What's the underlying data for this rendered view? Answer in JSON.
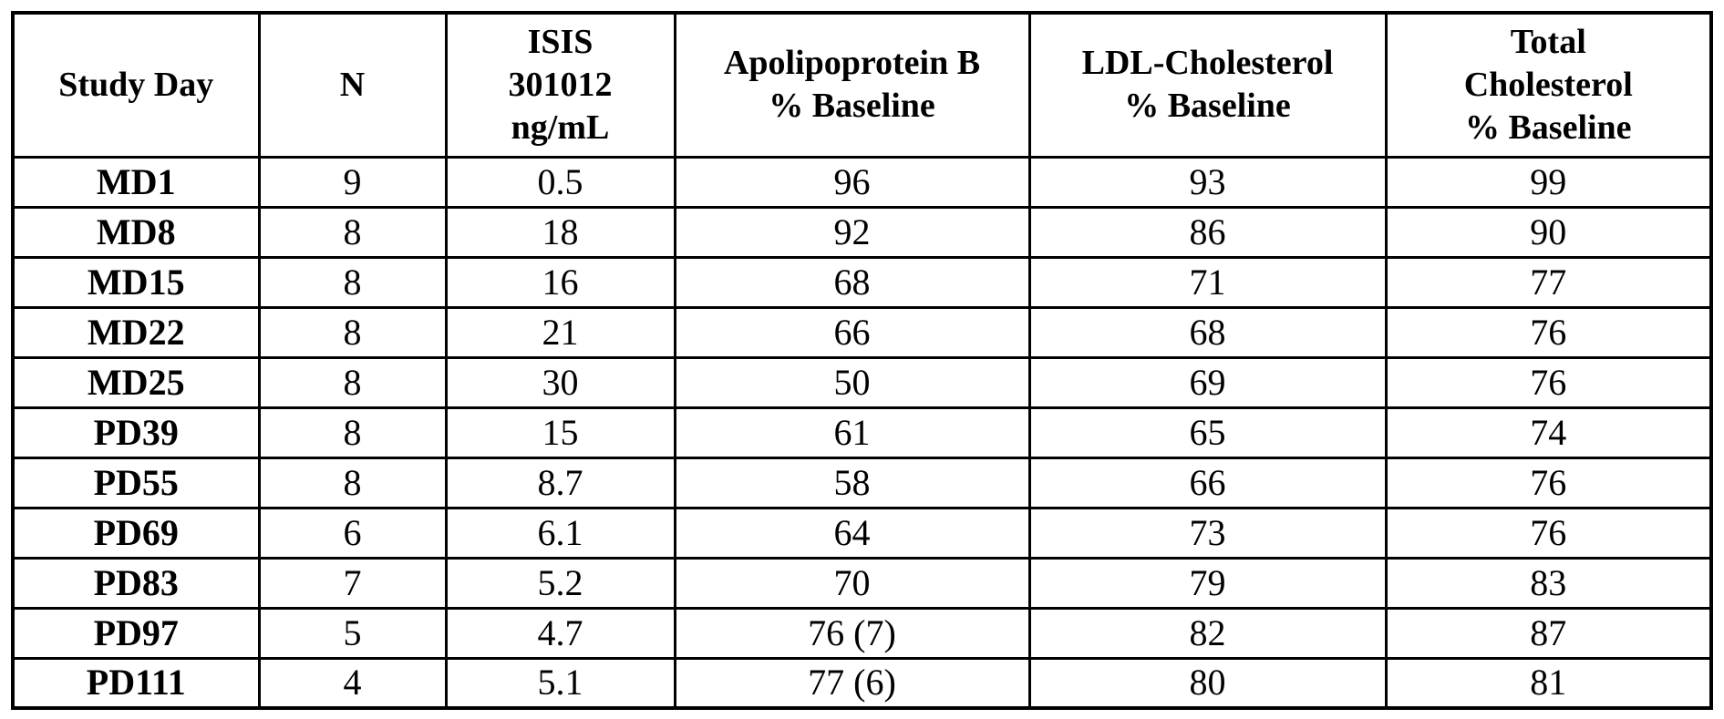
{
  "table": {
    "border_color": "#000000",
    "text_color": "#000000",
    "background_color": "#ffffff",
    "headers": [
      "Study Day",
      "N",
      "ISIS\n301012\nng/mL",
      "Apolipoprotein B\n% Baseline",
      "LDL-Cholesterol\n% Baseline",
      "Total\nCholesterol\n% Baseline"
    ],
    "rows": [
      [
        "MD1",
        "9",
        "0.5",
        "96",
        "93",
        "99"
      ],
      [
        "MD8",
        "8",
        "18",
        "92",
        "86",
        "90"
      ],
      [
        "MD15",
        "8",
        "16",
        "68",
        "71",
        "77"
      ],
      [
        "MD22",
        "8",
        "21",
        "66",
        "68",
        "76"
      ],
      [
        "MD25",
        "8",
        "30",
        "50",
        "69",
        "76"
      ],
      [
        "PD39",
        "8",
        "15",
        "61",
        "65",
        "74"
      ],
      [
        "PD55",
        "8",
        "8.7",
        "58",
        "66",
        "76"
      ],
      [
        "PD69",
        "6",
        "6.1",
        "64",
        "73",
        "76"
      ],
      [
        "PD83",
        "7",
        "5.2",
        "70",
        "79",
        "83"
      ],
      [
        "PD97",
        "5",
        "4.7",
        "76 (7)",
        "82",
        "87"
      ],
      [
        "PD111",
        "4",
        "5.1",
        "77 (6)",
        "80",
        "81"
      ]
    ]
  }
}
